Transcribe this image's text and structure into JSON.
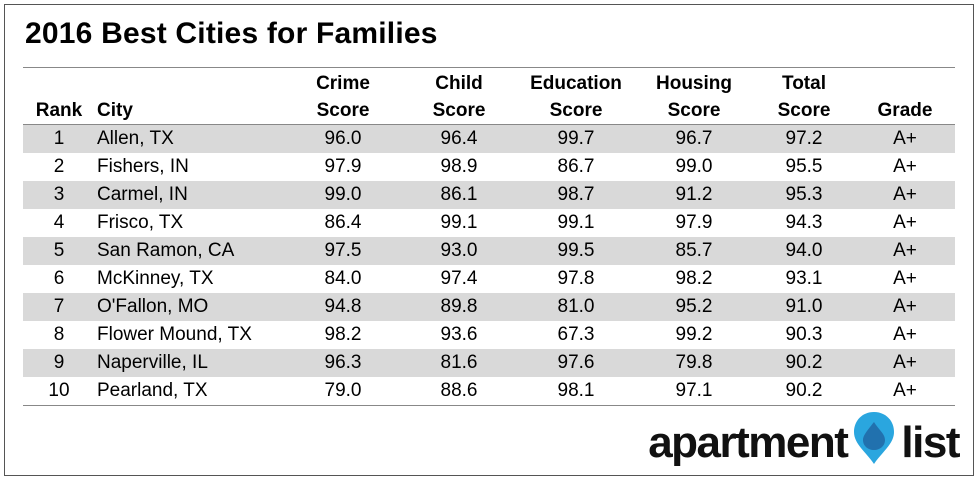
{
  "title": "2016 Best Cities for Families",
  "chart_data": {
    "type": "table",
    "columns": [
      {
        "key": "rank",
        "line1": "",
        "line2": "Rank"
      },
      {
        "key": "city",
        "line1": "",
        "line2": "City"
      },
      {
        "key": "crime",
        "line1": "Crime",
        "line2": "Score"
      },
      {
        "key": "child",
        "line1": "Child",
        "line2": "Score"
      },
      {
        "key": "education",
        "line1": "Education",
        "line2": "Score"
      },
      {
        "key": "housing",
        "line1": "Housing",
        "line2": "Score"
      },
      {
        "key": "total",
        "line1": "Total",
        "line2": "Score"
      },
      {
        "key": "grade",
        "line1": "",
        "line2": "Grade"
      }
    ],
    "rows": [
      {
        "rank": "1",
        "city": "Allen, TX",
        "crime": "96.0",
        "child": "96.4",
        "education": "99.7",
        "housing": "96.7",
        "total": "97.2",
        "grade": "A+"
      },
      {
        "rank": "2",
        "city": "Fishers, IN",
        "crime": "97.9",
        "child": "98.9",
        "education": "86.7",
        "housing": "99.0",
        "total": "95.5",
        "grade": "A+"
      },
      {
        "rank": "3",
        "city": "Carmel, IN",
        "crime": "99.0",
        "child": "86.1",
        "education": "98.7",
        "housing": "91.2",
        "total": "95.3",
        "grade": "A+"
      },
      {
        "rank": "4",
        "city": "Frisco, TX",
        "crime": "86.4",
        "child": "99.1",
        "education": "99.1",
        "housing": "97.9",
        "total": "94.3",
        "grade": "A+"
      },
      {
        "rank": "5",
        "city": "San Ramon, CA",
        "crime": "97.5",
        "child": "93.0",
        "education": "99.5",
        "housing": "85.7",
        "total": "94.0",
        "grade": "A+"
      },
      {
        "rank": "6",
        "city": "McKinney, TX",
        "crime": "84.0",
        "child": "97.4",
        "education": "97.8",
        "housing": "98.2",
        "total": "93.1",
        "grade": "A+"
      },
      {
        "rank": "7",
        "city": "O'Fallon, MO",
        "crime": "94.8",
        "child": "89.8",
        "education": "81.0",
        "housing": "95.2",
        "total": "91.0",
        "grade": "A+"
      },
      {
        "rank": "8",
        "city": "Flower Mound, TX",
        "crime": "98.2",
        "child": "93.6",
        "education": "67.3",
        "housing": "99.2",
        "total": "90.3",
        "grade": "A+"
      },
      {
        "rank": "9",
        "city": "Naperville, IL",
        "crime": "96.3",
        "child": "81.6",
        "education": "97.6",
        "housing": "79.8",
        "total": "90.2",
        "grade": "A+"
      },
      {
        "rank": "10",
        "city": "Pearland, TX",
        "crime": "79.0",
        "child": "88.6",
        "education": "98.1",
        "housing": "97.1",
        "total": "90.2",
        "grade": "A+"
      }
    ],
    "stripe_color": "#d9d9d9"
  },
  "logo": {
    "left_word": "apartment",
    "right_word": "list",
    "icon": "location-pin-icon",
    "colors": [
      "#2aa6df",
      "#1f5f9e"
    ]
  }
}
